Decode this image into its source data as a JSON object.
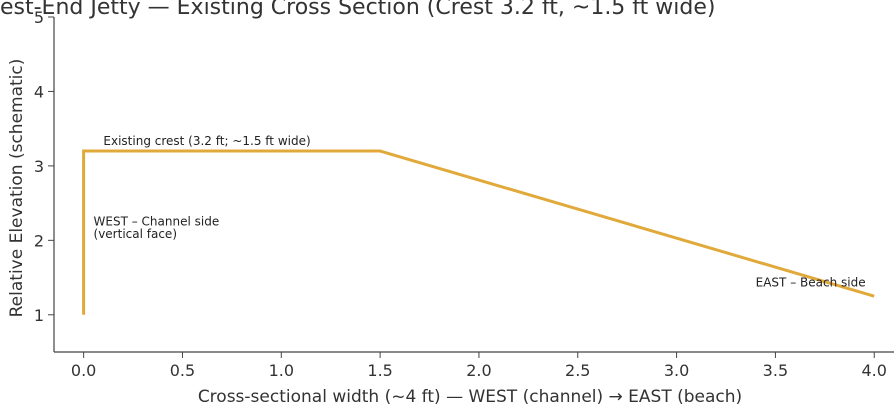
{
  "chart_data": {
    "type": "line",
    "title": "est-End Jetty — Existing Cross Section (Crest 3.2 ft, ~1.5 ft wide)",
    "xlabel": "Cross-sectional width (~4 ft) — WEST (channel) → EAST (beach)",
    "ylabel": "Relative Elevation (schematic)",
    "xlim": [
      -0.15,
      4.1
    ],
    "ylim": [
      0.5,
      5
    ],
    "x_ticks": [
      0.0,
      0.5,
      1.0,
      1.5,
      2.0,
      2.5,
      3.0,
      3.5,
      4.0
    ],
    "x_tick_labels": [
      "0.0",
      "0.5",
      "1.0",
      "1.5",
      "2.0",
      "2.5",
      "3.0",
      "3.5",
      "4.0"
    ],
    "y_ticks": [
      1,
      2,
      3,
      4,
      5
    ],
    "y_tick_labels": [
      "1",
      "2",
      "3",
      "4",
      "5"
    ],
    "grid": false,
    "series": [
      {
        "color": "#e0a93a",
        "x": [
          0.0,
          0.0,
          1.5,
          4.0
        ],
        "y": [
          1.0,
          3.2,
          3.2,
          1.25
        ]
      }
    ],
    "annotations": [
      {
        "text": "Existing crest (3.2 ft; ~1.5 ft wide)",
        "x": 0.1,
        "y": 3.28
      },
      {
        "text": "WEST – Channel side",
        "x": 0.05,
        "y": 2.2
      },
      {
        "text": "(vertical face)",
        "x": 0.05,
        "y": 2.03
      },
      {
        "text": "EAST – Beach side",
        "x": 3.4,
        "y": 1.38
      }
    ]
  }
}
